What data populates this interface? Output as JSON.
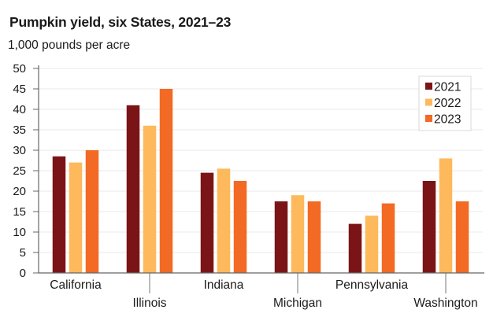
{
  "chart_data": {
    "type": "bar",
    "title": "Pumpkin yield, six States, 2021–23",
    "subtitle": "1,000 pounds per acre",
    "xlabel": "",
    "ylabel": "1,000 pounds per acre",
    "ylim": [
      0,
      50
    ],
    "yticks": [
      0,
      5,
      10,
      15,
      20,
      25,
      30,
      35,
      40,
      45,
      50
    ],
    "grid": true,
    "legend_position": "top-right",
    "categories": [
      "California",
      "Illinois",
      "Indiana",
      "Michigan",
      "Pennsylvania",
      "Washington"
    ],
    "series": [
      {
        "name": "2021",
        "color": "#7b1416",
        "values": [
          28.5,
          41,
          24.5,
          17.5,
          12,
          22.5
        ]
      },
      {
        "name": "2022",
        "color": "#fdb95c",
        "values": [
          27,
          36,
          25.5,
          19,
          14,
          28
        ]
      },
      {
        "name": "2023",
        "color": "#f26a24",
        "values": [
          30,
          45,
          22.5,
          17.5,
          17,
          17.5
        ]
      }
    ]
  }
}
